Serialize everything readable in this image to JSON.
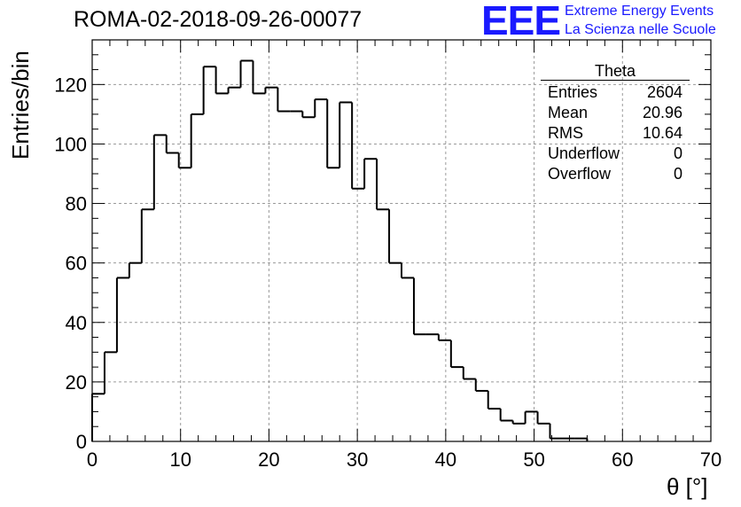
{
  "chart_data": {
    "type": "bar",
    "title": "ROMA-02-2018-09-26-00077",
    "xlabel": "θ [°]",
    "ylabel": "Entries/bin",
    "xlim": [
      0,
      70
    ],
    "ylim": [
      0,
      135
    ],
    "xticks": [
      0,
      10,
      20,
      30,
      40,
      50,
      60,
      70
    ],
    "yticks": [
      0,
      20,
      40,
      60,
      80,
      100,
      120
    ],
    "grid": true,
    "histogram_style": "step",
    "bin_width": 1.4,
    "bin_start": 0,
    "values": [
      16,
      30,
      55,
      60,
      78,
      103,
      97,
      92,
      110,
      126,
      117,
      119,
      128,
      117,
      119,
      111,
      111,
      109,
      115,
      92,
      114,
      85,
      95,
      78,
      60,
      55,
      36,
      36,
      34,
      25,
      21,
      17,
      11,
      7,
      6,
      10,
      6,
      1,
      1,
      1
    ],
    "legend": {
      "placement": "top-right",
      "title": "Theta",
      "rows": [
        {
          "label": "Entries",
          "value": "2604"
        },
        {
          "label": "Mean",
          "value": "20.96"
        },
        {
          "label": "RMS",
          "value": "10.64"
        },
        {
          "label": "Underflow",
          "value": "0"
        },
        {
          "label": "Overflow",
          "value": "0"
        }
      ]
    }
  },
  "logo": {
    "mark": "EEE",
    "line1": "Extreme Energy Events",
    "line2": "La Scienza nelle Scuole"
  },
  "colors": {
    "line": "#000000",
    "grid": "#9a9a9a",
    "logo": "#1a1aff"
  }
}
